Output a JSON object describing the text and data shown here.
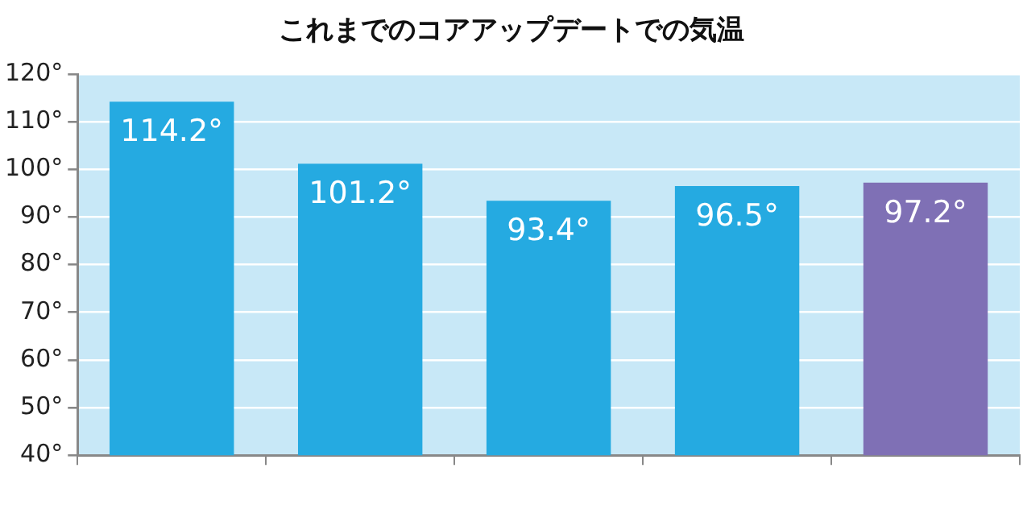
{
  "chart_data": {
    "type": "bar",
    "title": "これまでのコアアップデートでの気温",
    "categories": [
      null,
      null,
      null,
      null,
      null
    ],
    "values": [
      114.2,
      101.2,
      93.4,
      96.5,
      97.2
    ],
    "colors": [
      "#25aae1",
      "#25aae1",
      "#25aae1",
      "#25aae1",
      "#7f70b5"
    ],
    "value_labels": [
      "114.2°",
      "101.2°",
      "93.4°",
      "96.5°",
      "97.2°"
    ],
    "ylim": [
      40,
      120
    ],
    "yticks": [
      {
        "value": 40,
        "label": "40°"
      },
      {
        "value": 50,
        "label": "50°"
      },
      {
        "value": 60,
        "label": "60°"
      },
      {
        "value": 70,
        "label": "70°"
      },
      {
        "value": 80,
        "label": "80°"
      },
      {
        "value": 90,
        "label": "90°"
      },
      {
        "value": 100,
        "label": "100°"
      },
      {
        "value": 110,
        "label": "110°"
      },
      {
        "value": 120,
        "label": "120°"
      }
    ],
    "grid": "y",
    "legend": false
  }
}
